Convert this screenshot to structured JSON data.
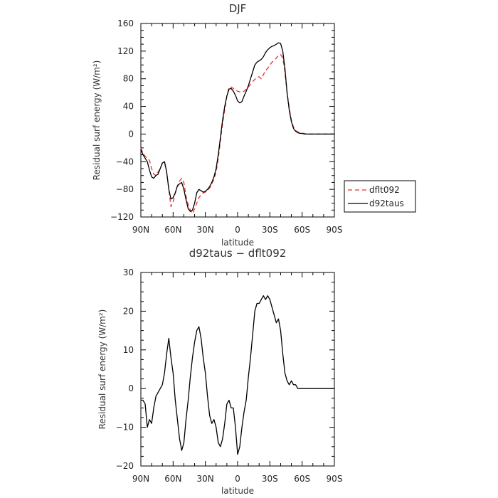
{
  "chart_data": [
    {
      "type": "line",
      "title": "DJF",
      "xlabel": "latitude",
      "ylabel": "Residual surf energy (W/m²)",
      "xlim": [
        90,
        -90
      ],
      "ylim": [
        -120,
        160
      ],
      "x_ticks": [
        90,
        60,
        30,
        0,
        -30,
        -60,
        -90
      ],
      "x_tick_labels": [
        "90N",
        "60N",
        "30N",
        "0",
        "30S",
        "60S",
        "90S"
      ],
      "y_ticks": [
        -120,
        -80,
        -40,
        0,
        40,
        80,
        120,
        160
      ],
      "y_tick_labels": [
        "−120",
        "−80",
        "−40",
        "0",
        "40",
        "80",
        "120",
        "160"
      ],
      "legend_position": "right",
      "series": [
        {
          "name": "dflt092",
          "color": "#e8302a",
          "dash": "dashed",
          "x": [
            90,
            88,
            86,
            84,
            82,
            80,
            78,
            76,
            74,
            72,
            70,
            68,
            66,
            64,
            62,
            60,
            58,
            56,
            54,
            52,
            50,
            48,
            46,
            44,
            42,
            40,
            38,
            36,
            34,
            32,
            30,
            28,
            26,
            24,
            22,
            20,
            18,
            16,
            14,
            12,
            10,
            8,
            6,
            4,
            2,
            0,
            -2,
            -4,
            -6,
            -8,
            -10,
            -12,
            -14,
            -16,
            -18,
            -20,
            -22,
            -24,
            -26,
            -28,
            -30,
            -32,
            -34,
            -36,
            -38,
            -40,
            -42,
            -44,
            -46,
            -48,
            -50,
            -52,
            -54,
            -56,
            -58,
            -60,
            -62,
            -64,
            -66,
            -68,
            -70,
            -72,
            -74,
            -76,
            -78,
            -80,
            -82,
            -84,
            -86,
            -88,
            -90
          ],
          "values": [
            -20,
            -28,
            -32,
            -35,
            -38,
            -50,
            -58,
            -60,
            -55,
            -50,
            -42,
            -40,
            -55,
            -80,
            -105,
            -98,
            -85,
            -75,
            -68,
            -64,
            -70,
            -90,
            -102,
            -110,
            -115,
            -108,
            -100,
            -92,
            -88,
            -85,
            -84,
            -82,
            -78,
            -72,
            -65,
            -55,
            -35,
            -10,
            15,
            35,
            55,
            68,
            68,
            66,
            64,
            62,
            61,
            60,
            62,
            65,
            68,
            72,
            76,
            79,
            82,
            83,
            80,
            86,
            92,
            95,
            100,
            104,
            107,
            110,
            114,
            115,
            110,
            90,
            60,
            38,
            20,
            10,
            5,
            3,
            2,
            1,
            1,
            0,
            0,
            0,
            0,
            0,
            0,
            0,
            0,
            0,
            0,
            0,
            0,
            0,
            0
          ]
        },
        {
          "name": "d92taus",
          "color": "#000000",
          "dash": "solid",
          "x": [
            90,
            88,
            86,
            84,
            82,
            80,
            78,
            76,
            74,
            72,
            70,
            68,
            66,
            64,
            62,
            60,
            58,
            56,
            54,
            52,
            50,
            48,
            46,
            44,
            42,
            40,
            38,
            36,
            34,
            32,
            30,
            28,
            26,
            24,
            22,
            20,
            18,
            16,
            14,
            12,
            10,
            8,
            6,
            4,
            2,
            0,
            -2,
            -4,
            -6,
            -8,
            -10,
            -12,
            -14,
            -16,
            -18,
            -20,
            -22,
            -24,
            -26,
            -28,
            -30,
            -32,
            -34,
            -36,
            -38,
            -40,
            -42,
            -44,
            -46,
            -48,
            -50,
            -52,
            -54,
            -56,
            -58,
            -60,
            -62,
            -64,
            -66,
            -68,
            -70,
            -72,
            -74,
            -76,
            -78,
            -80,
            -82,
            -84,
            -86,
            -88,
            -90
          ],
          "values": [
            -22,
            -30,
            -35,
            -40,
            -52,
            -62,
            -64,
            -60,
            -58,
            -50,
            -42,
            -40,
            -55,
            -80,
            -94,
            -92,
            -85,
            -75,
            -72,
            -70,
            -80,
            -95,
            -108,
            -112,
            -110,
            -100,
            -85,
            -80,
            -82,
            -84,
            -83,
            -80,
            -76,
            -70,
            -62,
            -50,
            -30,
            -5,
            20,
            40,
            55,
            65,
            66,
            62,
            56,
            48,
            45,
            47,
            55,
            62,
            70,
            80,
            90,
            100,
            104,
            106,
            108,
            112,
            118,
            122,
            125,
            127,
            128,
            130,
            132,
            131,
            120,
            95,
            60,
            35,
            18,
            8,
            4,
            2,
            1,
            1,
            0,
            0,
            0,
            0,
            0,
            0,
            0,
            0,
            0,
            0,
            0,
            0,
            0,
            0,
            0
          ]
        }
      ]
    },
    {
      "type": "line",
      "title": "d92taus − dflt092",
      "xlabel": "latitude",
      "ylabel": "Residual surf energy (W/m²)",
      "xlim": [
        90,
        -90
      ],
      "ylim": [
        -20,
        30
      ],
      "x_ticks": [
        90,
        60,
        30,
        0,
        -30,
        -60,
        -90
      ],
      "x_tick_labels": [
        "90N",
        "60N",
        "30N",
        "0",
        "30S",
        "60S",
        "90S"
      ],
      "y_ticks": [
        -20,
        -10,
        0,
        10,
        20,
        30
      ],
      "y_tick_labels": [
        "−20",
        "−10",
        "0",
        "10",
        "20",
        "30"
      ],
      "series": [
        {
          "color": "#000000",
          "dash": "solid",
          "x": [
            90,
            88,
            86,
            84,
            82,
            80,
            78,
            76,
            74,
            72,
            70,
            68,
            66,
            64,
            62,
            60,
            58,
            56,
            54,
            52,
            50,
            48,
            46,
            44,
            42,
            40,
            38,
            36,
            34,
            32,
            30,
            28,
            26,
            24,
            22,
            20,
            18,
            16,
            14,
            12,
            10,
            8,
            6,
            4,
            2,
            0,
            -2,
            -4,
            -6,
            -8,
            -10,
            -12,
            -14,
            -16,
            -18,
            -20,
            -22,
            -24,
            -26,
            -28,
            -30,
            -32,
            -34,
            -36,
            -38,
            -40,
            -42,
            -44,
            -46,
            -48,
            -50,
            -52,
            -54,
            -56,
            -58,
            -60,
            -62,
            -64,
            -66,
            -68,
            -70,
            -72,
            -74,
            -76,
            -78,
            -80,
            -82,
            -84,
            -86,
            -88,
            -90
          ],
          "values": [
            -3,
            -3,
            -4,
            -10,
            -8,
            -9,
            -5,
            -2,
            -1,
            0,
            1,
            4,
            9,
            13,
            8,
            4,
            -3,
            -8,
            -13,
            -16,
            -14,
            -8,
            -3,
            3,
            8,
            12,
            15,
            16,
            13,
            8,
            4,
            -2,
            -7,
            -9,
            -8,
            -10,
            -14,
            -15,
            -13,
            -9,
            -4,
            -3,
            -5,
            -5,
            -10,
            -17,
            -15,
            -10,
            -6,
            -3,
            3,
            8,
            14,
            20,
            22,
            22,
            23,
            24,
            23,
            24,
            23,
            21,
            19,
            17,
            18,
            15,
            9,
            4,
            2,
            1,
            2,
            1,
            1,
            0,
            0,
            0,
            0,
            0,
            0,
            0,
            0,
            0,
            0,
            0,
            0,
            0,
            0,
            0,
            0,
            0,
            0
          ]
        }
      ]
    }
  ]
}
